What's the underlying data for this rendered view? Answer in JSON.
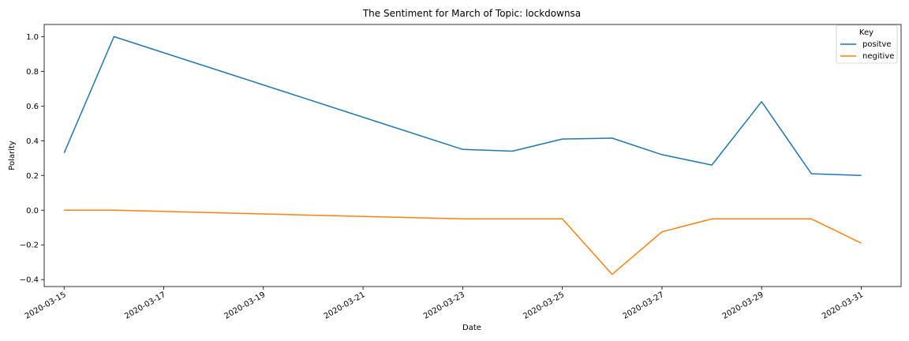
{
  "chart_data": {
    "type": "line",
    "title": "The Sentiment for March of Topic: lockdownsa",
    "xlabel": "Date",
    "ylabel": "Polarity",
    "x": [
      "2020-03-15",
      "2020-03-16",
      "2020-03-23",
      "2020-03-24",
      "2020-03-25",
      "2020-03-26",
      "2020-03-27",
      "2020-03-28",
      "2020-03-29",
      "2020-03-30",
      "2020-03-31"
    ],
    "series": [
      {
        "name": "positve",
        "color": "#1f77b4",
        "values": [
          0.33,
          1.0,
          0.35,
          0.34,
          0.41,
          0.415,
          0.32,
          0.26,
          0.625,
          0.21,
          0.2
        ]
      },
      {
        "name": "negitive",
        "color": "#ff7f0e",
        "values": [
          0.0,
          0.0,
          -0.05,
          -0.05,
          -0.05,
          -0.37,
          -0.125,
          -0.05,
          -0.05,
          -0.05,
          -0.19
        ]
      }
    ],
    "x_ticks": [
      "2020-03-15",
      "2020-03-17",
      "2020-03-19",
      "2020-03-21",
      "2020-03-23",
      "2020-03-25",
      "2020-03-27",
      "2020-03-29",
      "2020-03-31"
    ],
    "y_ticks": [
      "1.0",
      "0.8",
      "0.6",
      "0.4",
      "0.2",
      "0.0",
      "−0.2",
      "−0.4"
    ],
    "y_tick_values": [
      1.0,
      0.8,
      0.6,
      0.4,
      0.2,
      0.0,
      -0.2,
      -0.4
    ],
    "xlim": [
      "2020-03-14.6",
      "2020-03-31.8"
    ],
    "ylim": [
      -0.44,
      1.07
    ],
    "grid": false,
    "legend": {
      "title": "Key",
      "placement": "top-right"
    }
  }
}
